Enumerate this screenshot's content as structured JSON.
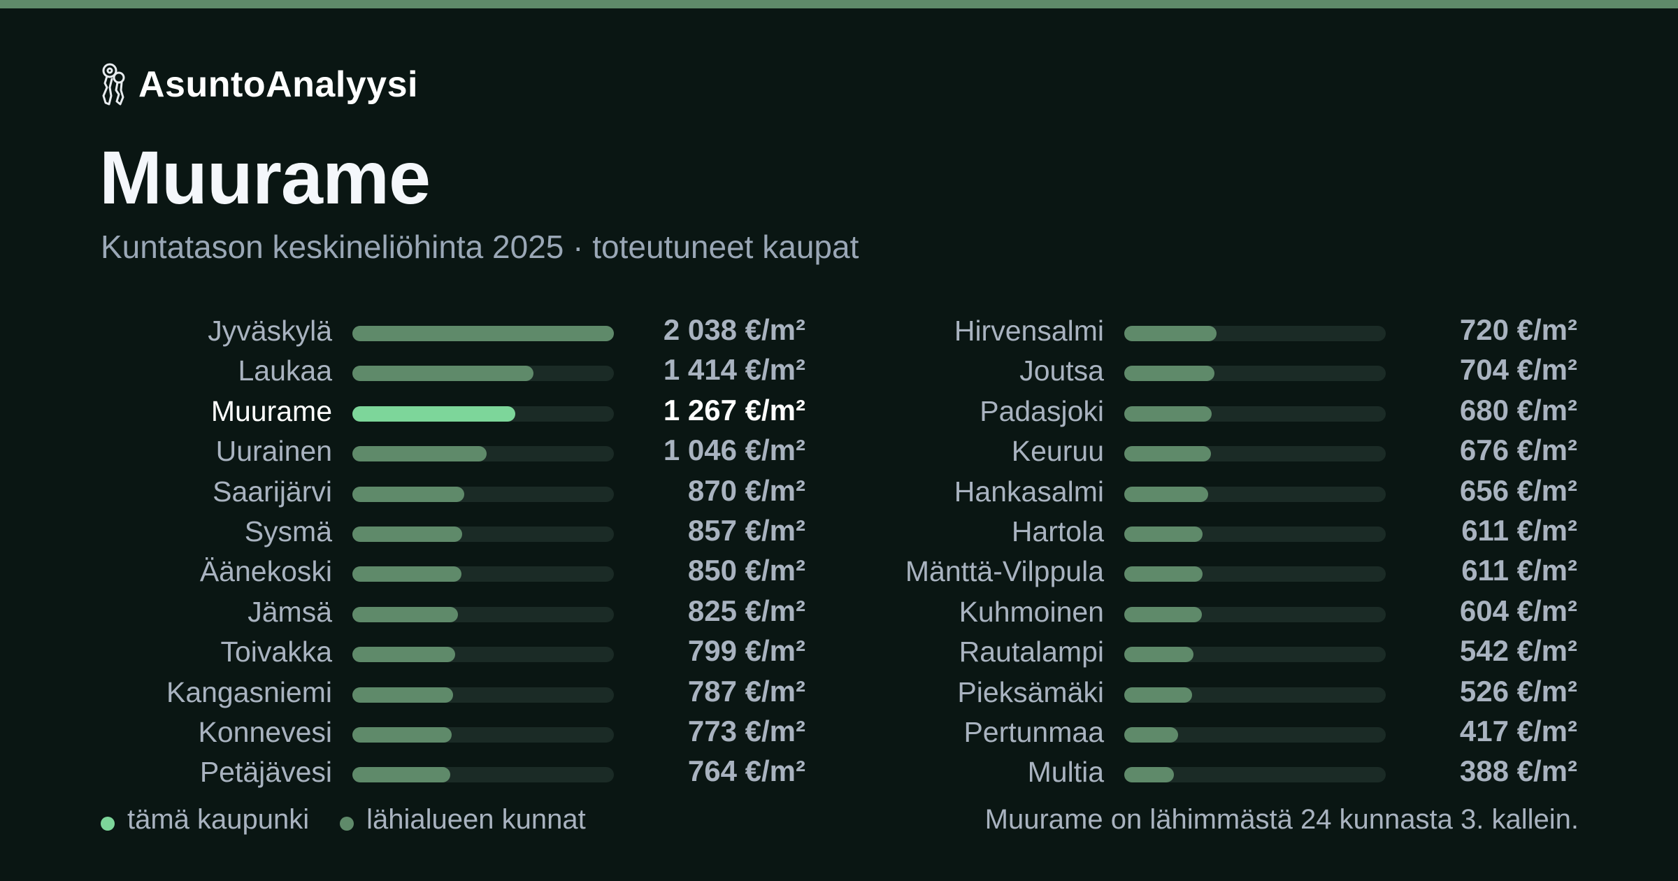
{
  "brand": {
    "name": "AsuntoAnalyysi",
    "icon": "keys-icon"
  },
  "header": {
    "title": "Muurame",
    "subtitle": "Kuntatason keskineliöhinta 2025 · toteutuneet kaupat"
  },
  "colors": {
    "background": "#0a1613",
    "accent": "#5f8a6a",
    "highlight": "#7dd69a",
    "track": "#1b2b26",
    "text_muted": "#a9b3c0"
  },
  "chart_data": {
    "type": "bar",
    "orientation": "horizontal",
    "unit": "€/m²",
    "xlim": [
      0,
      2038
    ],
    "highlight": "Muurame",
    "columns": [
      {
        "categories": [
          "Jyväskylä",
          "Laukaa",
          "Muurame",
          "Uurainen",
          "Saarijärvi",
          "Sysmä",
          "Äänekoski",
          "Jämsä",
          "Toivakka",
          "Kangasniemi",
          "Konnevesi",
          "Petäjävesi"
        ],
        "values": [
          2038,
          1414,
          1267,
          1046,
          870,
          857,
          850,
          825,
          799,
          787,
          773,
          764
        ],
        "labels": [
          "2 038 €/m²",
          "1 414 €/m²",
          "1 267 €/m²",
          "1 046 €/m²",
          "870 €/m²",
          "857 €/m²",
          "850 €/m²",
          "825 €/m²",
          "799 €/m²",
          "787 €/m²",
          "773 €/m²",
          "764 €/m²"
        ]
      },
      {
        "categories": [
          "Hirvensalmi",
          "Joutsa",
          "Padasjoki",
          "Keuruu",
          "Hankasalmi",
          "Hartola",
          "Mänttä-Vilppula",
          "Kuhmoinen",
          "Rautalampi",
          "Pieksämäki",
          "Pertunmaa",
          "Multia"
        ],
        "values": [
          720,
          704,
          680,
          676,
          656,
          611,
          611,
          604,
          542,
          526,
          417,
          388
        ],
        "labels": [
          "720 €/m²",
          "704 €/m²",
          "680 €/m²",
          "676 €/m²",
          "656 €/m²",
          "611 €/m²",
          "611 €/m²",
          "604 €/m²",
          "542 €/m²",
          "526 €/m²",
          "417 €/m²",
          "388 €/m²"
        ]
      }
    ]
  },
  "legend": {
    "this_city": "tämä kaupunki",
    "nearby": "lähialueen kunnat"
  },
  "footnote": "Muurame on lähimmästä 24 kunnasta 3. kallein."
}
